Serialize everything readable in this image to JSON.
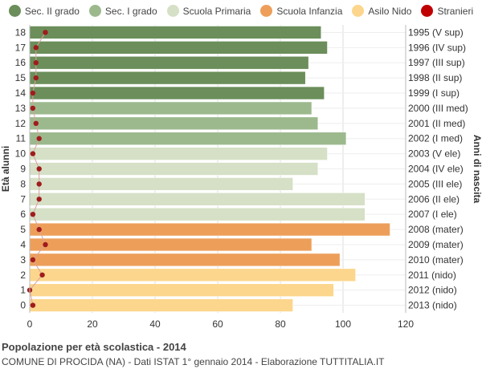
{
  "chart_data": {
    "type": "bar",
    "orientation": "horizontal",
    "ylabel_left": "Età alunni",
    "ylabel_right": "Anni di nascita",
    "xlim": [
      0,
      120
    ],
    "xticks": [
      0,
      20,
      40,
      60,
      80,
      100,
      120
    ],
    "grid": true,
    "legend_position": "top",
    "legend": [
      {
        "name": "Sec. II grado",
        "color": "#6b8e5a"
      },
      {
        "name": "Sec. I grado",
        "color": "#9cb98d"
      },
      {
        "name": "Scuola Primaria",
        "color": "#d5e0c6"
      },
      {
        "name": "Scuola Infanzia",
        "color": "#ed9f5a"
      },
      {
        "name": "Asilo Nido",
        "color": "#fcd68c"
      },
      {
        "name": "Stranieri",
        "color": "#c00000"
      }
    ],
    "rows": [
      {
        "age": "18",
        "year": "1995 (V sup)",
        "value": 93,
        "stranieri": 5,
        "category": "Sec. II grado"
      },
      {
        "age": "17",
        "year": "1996 (IV sup)",
        "value": 95,
        "stranieri": 2,
        "category": "Sec. II grado"
      },
      {
        "age": "16",
        "year": "1997 (III sup)",
        "value": 89,
        "stranieri": 2,
        "category": "Sec. II grado"
      },
      {
        "age": "15",
        "year": "1998 (II sup)",
        "value": 88,
        "stranieri": 2,
        "category": "Sec. II grado"
      },
      {
        "age": "14",
        "year": "1999 (I sup)",
        "value": 94,
        "stranieri": 1,
        "category": "Sec. II grado"
      },
      {
        "age": "13",
        "year": "2000 (III med)",
        "value": 90,
        "stranieri": 1,
        "category": "Sec. I grado"
      },
      {
        "age": "12",
        "year": "2001 (II med)",
        "value": 92,
        "stranieri": 2,
        "category": "Sec. I grado"
      },
      {
        "age": "11",
        "year": "2002 (I med)",
        "value": 101,
        "stranieri": 3,
        "category": "Sec. I grado"
      },
      {
        "age": "10",
        "year": "2003 (V ele)",
        "value": 95,
        "stranieri": 1,
        "category": "Scuola Primaria"
      },
      {
        "age": "9",
        "year": "2004 (IV ele)",
        "value": 92,
        "stranieri": 3,
        "category": "Scuola Primaria"
      },
      {
        "age": "8",
        "year": "2005 (III ele)",
        "value": 84,
        "stranieri": 3,
        "category": "Scuola Primaria"
      },
      {
        "age": "7",
        "year": "2006 (II ele)",
        "value": 107,
        "stranieri": 3,
        "category": "Scuola Primaria"
      },
      {
        "age": "6",
        "year": "2007 (I ele)",
        "value": 107,
        "stranieri": 1,
        "category": "Scuola Primaria"
      },
      {
        "age": "5",
        "year": "2008 (mater)",
        "value": 115,
        "stranieri": 3,
        "category": "Scuola Infanzia"
      },
      {
        "age": "4",
        "year": "2009 (mater)",
        "value": 90,
        "stranieri": 5,
        "category": "Scuola Infanzia"
      },
      {
        "age": "3",
        "year": "2010 (mater)",
        "value": 99,
        "stranieri": 1,
        "category": "Scuola Infanzia"
      },
      {
        "age": "2",
        "year": "2011 (nido)",
        "value": 104,
        "stranieri": 4,
        "category": "Asilo Nido"
      },
      {
        "age": "1",
        "year": "2012 (nido)",
        "value": 97,
        "stranieri": 0,
        "category": "Asilo Nido"
      },
      {
        "age": "0",
        "year": "2013 (nido)",
        "value": 84,
        "stranieri": 1,
        "category": "Asilo Nido"
      }
    ]
  },
  "footer": {
    "title": "Popolazione per età scolastica - 2014",
    "subtitle": "COMUNE DI PROCIDA (NA) - Dati ISTAT 1° gennaio 2014 - Elaborazione TUTTITALIA.IT"
  }
}
